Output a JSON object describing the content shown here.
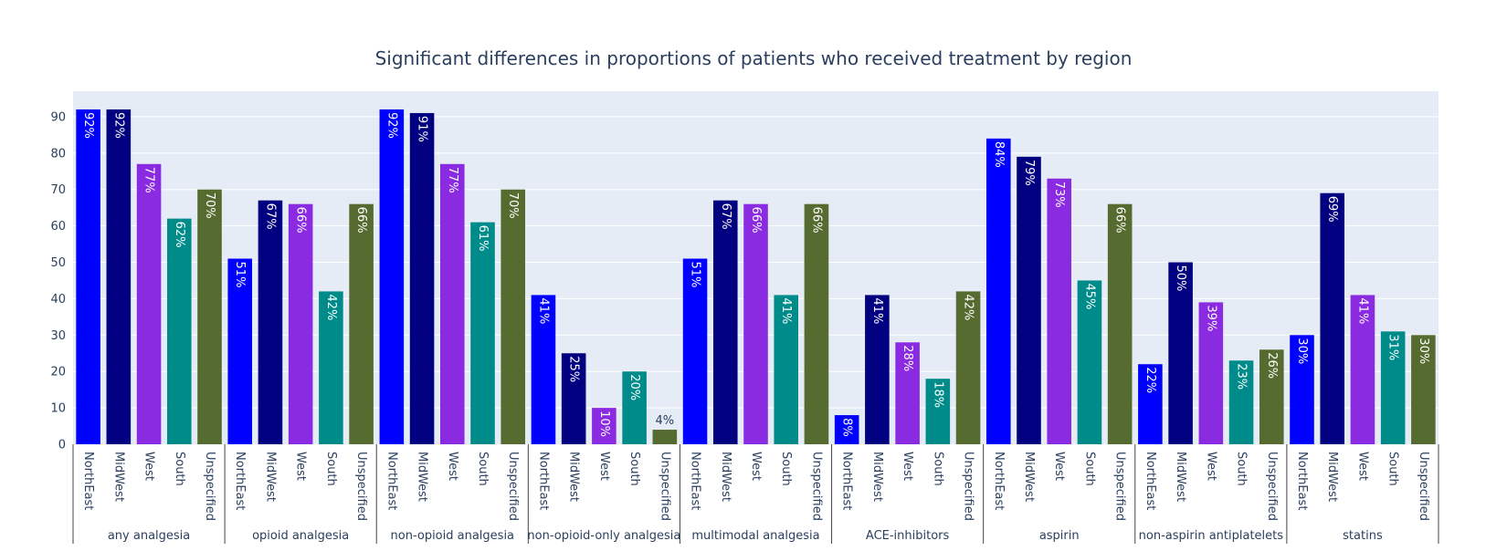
{
  "chart_data": {
    "type": "bar",
    "title": "Significant differences in proportions of patients who received treatment by region",
    "xlabel": "",
    "ylabel": "",
    "ylim": [
      0,
      97
    ],
    "yticks": [
      0,
      10,
      20,
      30,
      40,
      50,
      60,
      70,
      80,
      90
    ],
    "grid": true,
    "regions": [
      "NorthEast",
      "MidWest",
      "West",
      "South",
      "Unspecified"
    ],
    "region_colors": [
      "#0000ff",
      "#000080",
      "#8a2be2",
      "#008b8b",
      "#556b2f"
    ],
    "groups": [
      {
        "name": "any analgesia",
        "values": [
          92,
          92,
          77,
          62,
          70
        ],
        "labels": [
          "92%",
          "92%",
          "77%",
          "62%",
          "70%"
        ]
      },
      {
        "name": "opioid analgesia",
        "values": [
          51,
          67,
          66,
          42,
          66
        ],
        "labels": [
          "51%",
          "67%",
          "66%",
          "42%",
          "66%"
        ]
      },
      {
        "name": "non-opioid analgesia",
        "values": [
          92,
          91,
          77,
          61,
          70
        ],
        "labels": [
          "92%",
          "91%",
          "77%",
          "61%",
          "70%"
        ]
      },
      {
        "name": "non-opioid-only analgesia",
        "values": [
          41,
          25,
          10,
          20,
          4
        ],
        "labels": [
          "41%",
          "25%",
          "10%",
          "20%",
          "4%"
        ]
      },
      {
        "name": "multimodal analgesia",
        "values": [
          51,
          67,
          66,
          41,
          66
        ],
        "labels": [
          "51%",
          "67%",
          "66%",
          "41%",
          "66%"
        ]
      },
      {
        "name": "ACE-inhibitors",
        "values": [
          8,
          41,
          28,
          18,
          42
        ],
        "labels": [
          "8%",
          "41%",
          "28%",
          "18%",
          "42%"
        ]
      },
      {
        "name": "aspirin",
        "values": [
          84,
          79,
          73,
          45,
          66
        ],
        "labels": [
          "84%",
          "79%",
          "73%",
          "45%",
          "66%"
        ]
      },
      {
        "name": "non-aspirin antiplatelets",
        "values": [
          22,
          50,
          39,
          23,
          26
        ],
        "labels": [
          "22%",
          "50%",
          "39%",
          "23%",
          "26%"
        ]
      },
      {
        "name": "statins",
        "values": [
          30,
          69,
          41,
          31,
          30
        ],
        "labels": [
          "30%",
          "69%",
          "41%",
          "31%",
          "30%"
        ]
      }
    ]
  }
}
